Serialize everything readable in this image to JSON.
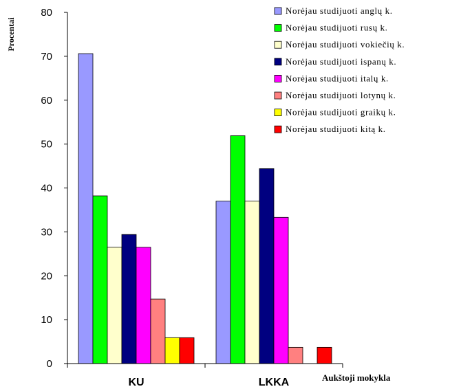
{
  "chart_data": {
    "type": "bar",
    "title": "",
    "ylabel": "Procentai",
    "xlabel": "Aukštoji mokykla",
    "ylim": [
      0,
      80
    ],
    "yticks": [
      "0",
      "10",
      "20",
      "30",
      "40",
      "50",
      "60",
      "70",
      "80"
    ],
    "grid": false,
    "legend_position": "top-right",
    "categories": [
      "KU",
      "LKKA"
    ],
    "series": [
      {
        "name": "Norėjau studijuoti anglų k.",
        "color": "#9999ff",
        "values": [
          70.6,
          37.0
        ]
      },
      {
        "name": "Norėjau studijuoti rusų k.",
        "color": "#00ff00",
        "values": [
          38.2,
          51.9
        ]
      },
      {
        "name": "Norėjau studijuoti vokiečių k.",
        "color": "#ffffcc",
        "values": [
          26.5,
          37.0
        ]
      },
      {
        "name": "Norėjau studijuoti ispanų k.",
        "color": "#000080",
        "values": [
          29.4,
          44.4
        ]
      },
      {
        "name": "Norėjau studijuoti italų k.",
        "color": "#ff00ff",
        "values": [
          26.5,
          33.3
        ]
      },
      {
        "name": "Norėjau studijuoti lotynų k.",
        "color": "#ff8080",
        "values": [
          14.7,
          3.7
        ]
      },
      {
        "name": "Norėjau studijuoti graikų k.",
        "color": "#ffff00",
        "values": [
          5.9,
          0
        ]
      },
      {
        "name": "Norėjau studijuoti kitą k.",
        "color": "#ff0000",
        "values": [
          5.9,
          3.7
        ]
      }
    ]
  }
}
